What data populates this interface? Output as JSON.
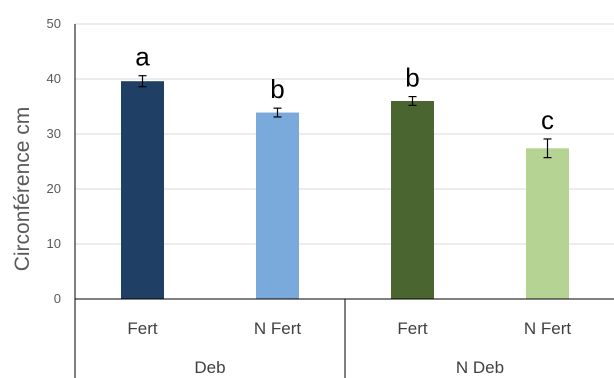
{
  "chart_data": {
    "type": "bar",
    "title": "",
    "xlabel": "",
    "ylabel": "Circonférence cm",
    "ylim": [
      0,
      50
    ],
    "yticks": [
      0,
      10,
      20,
      30,
      40,
      50
    ],
    "grid": true,
    "legend": "none",
    "groups": [
      {
        "label": "Deb",
        "categories": [
          "Fert",
          "N Fert"
        ]
      },
      {
        "label": "N Deb",
        "categories": [
          "Fert",
          "N Fert"
        ]
      }
    ],
    "bars": [
      {
        "group": "Deb",
        "category": "Fert",
        "value": 39.6,
        "error": 1.0,
        "letter": "a",
        "color": "#1f4064"
      },
      {
        "group": "Deb",
        "category": "N Fert",
        "value": 33.9,
        "error": 0.8,
        "letter": "b",
        "color": "#7aa9dc"
      },
      {
        "group": "N Deb",
        "category": "Fert",
        "value": 36.0,
        "error": 0.8,
        "letter": "b",
        "color": "#4a6530"
      },
      {
        "group": "N Deb",
        "category": "N Fert",
        "value": 27.4,
        "error": 1.7,
        "letter": "c",
        "color": "#b5d494"
      }
    ],
    "colors": {
      "grid": "#d9d9d9",
      "axis": "#000000",
      "text": "#595959"
    }
  }
}
